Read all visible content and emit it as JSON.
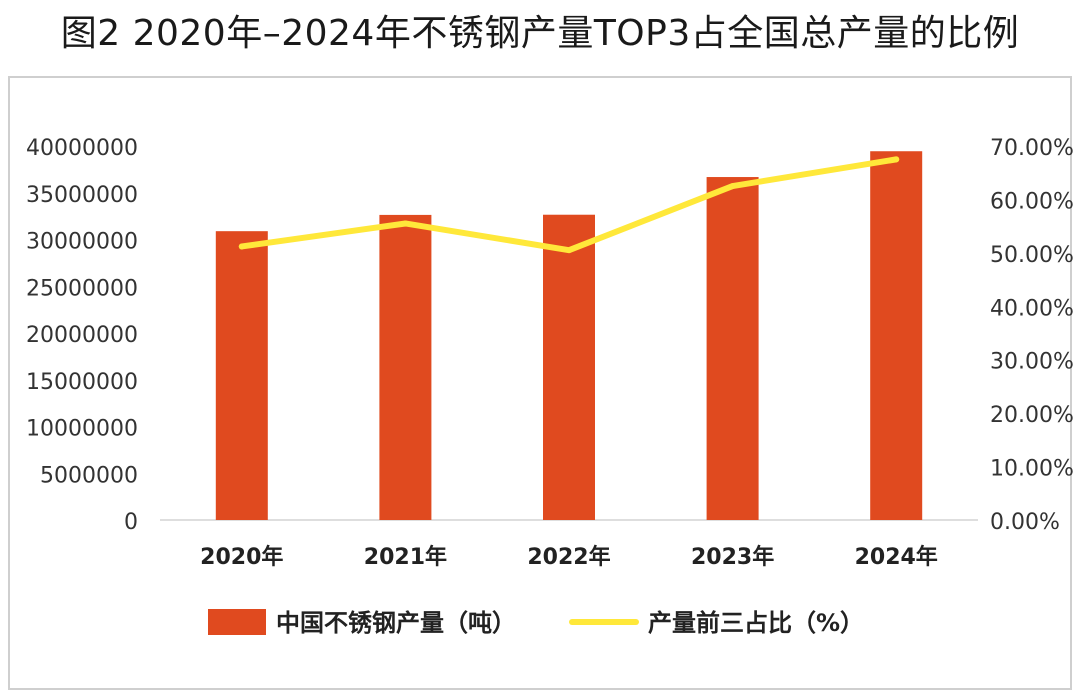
{
  "title": "图2 2020年–2024年不锈钢产量TOP3占全国总产量的比例",
  "chart_data": {
    "type": "bar",
    "categories": [
      "2020年",
      "2021年",
      "2022年",
      "2023年",
      "2024年"
    ],
    "series": [
      {
        "name": "中国不锈钢产量（吨）",
        "chart_type": "bar",
        "axis": "left",
        "color": "#E04A1F",
        "values": [
          30890000,
          32630000,
          32650000,
          36680000,
          39440000
        ]
      },
      {
        "name": "产量前三占比（%）",
        "chart_type": "line",
        "axis": "right",
        "color": "#FFE83A",
        "values": [
          51.2,
          55.5,
          50.5,
          62.5,
          67.5
        ]
      }
    ],
    "y_left": {
      "range": [
        0,
        40000000
      ],
      "ticks": [
        "0",
        "5000000",
        "10000000",
        "15000000",
        "20000000",
        "25000000",
        "30000000",
        "35000000",
        "40000000"
      ]
    },
    "y_right": {
      "range": [
        0,
        70
      ],
      "ticks": [
        "0.00%",
        "10.00%",
        "20.00%",
        "30.00%",
        "40.00%",
        "50.00%",
        "60.00%",
        "70.00%"
      ]
    },
    "legend_position": "bottom",
    "grid": false
  }
}
